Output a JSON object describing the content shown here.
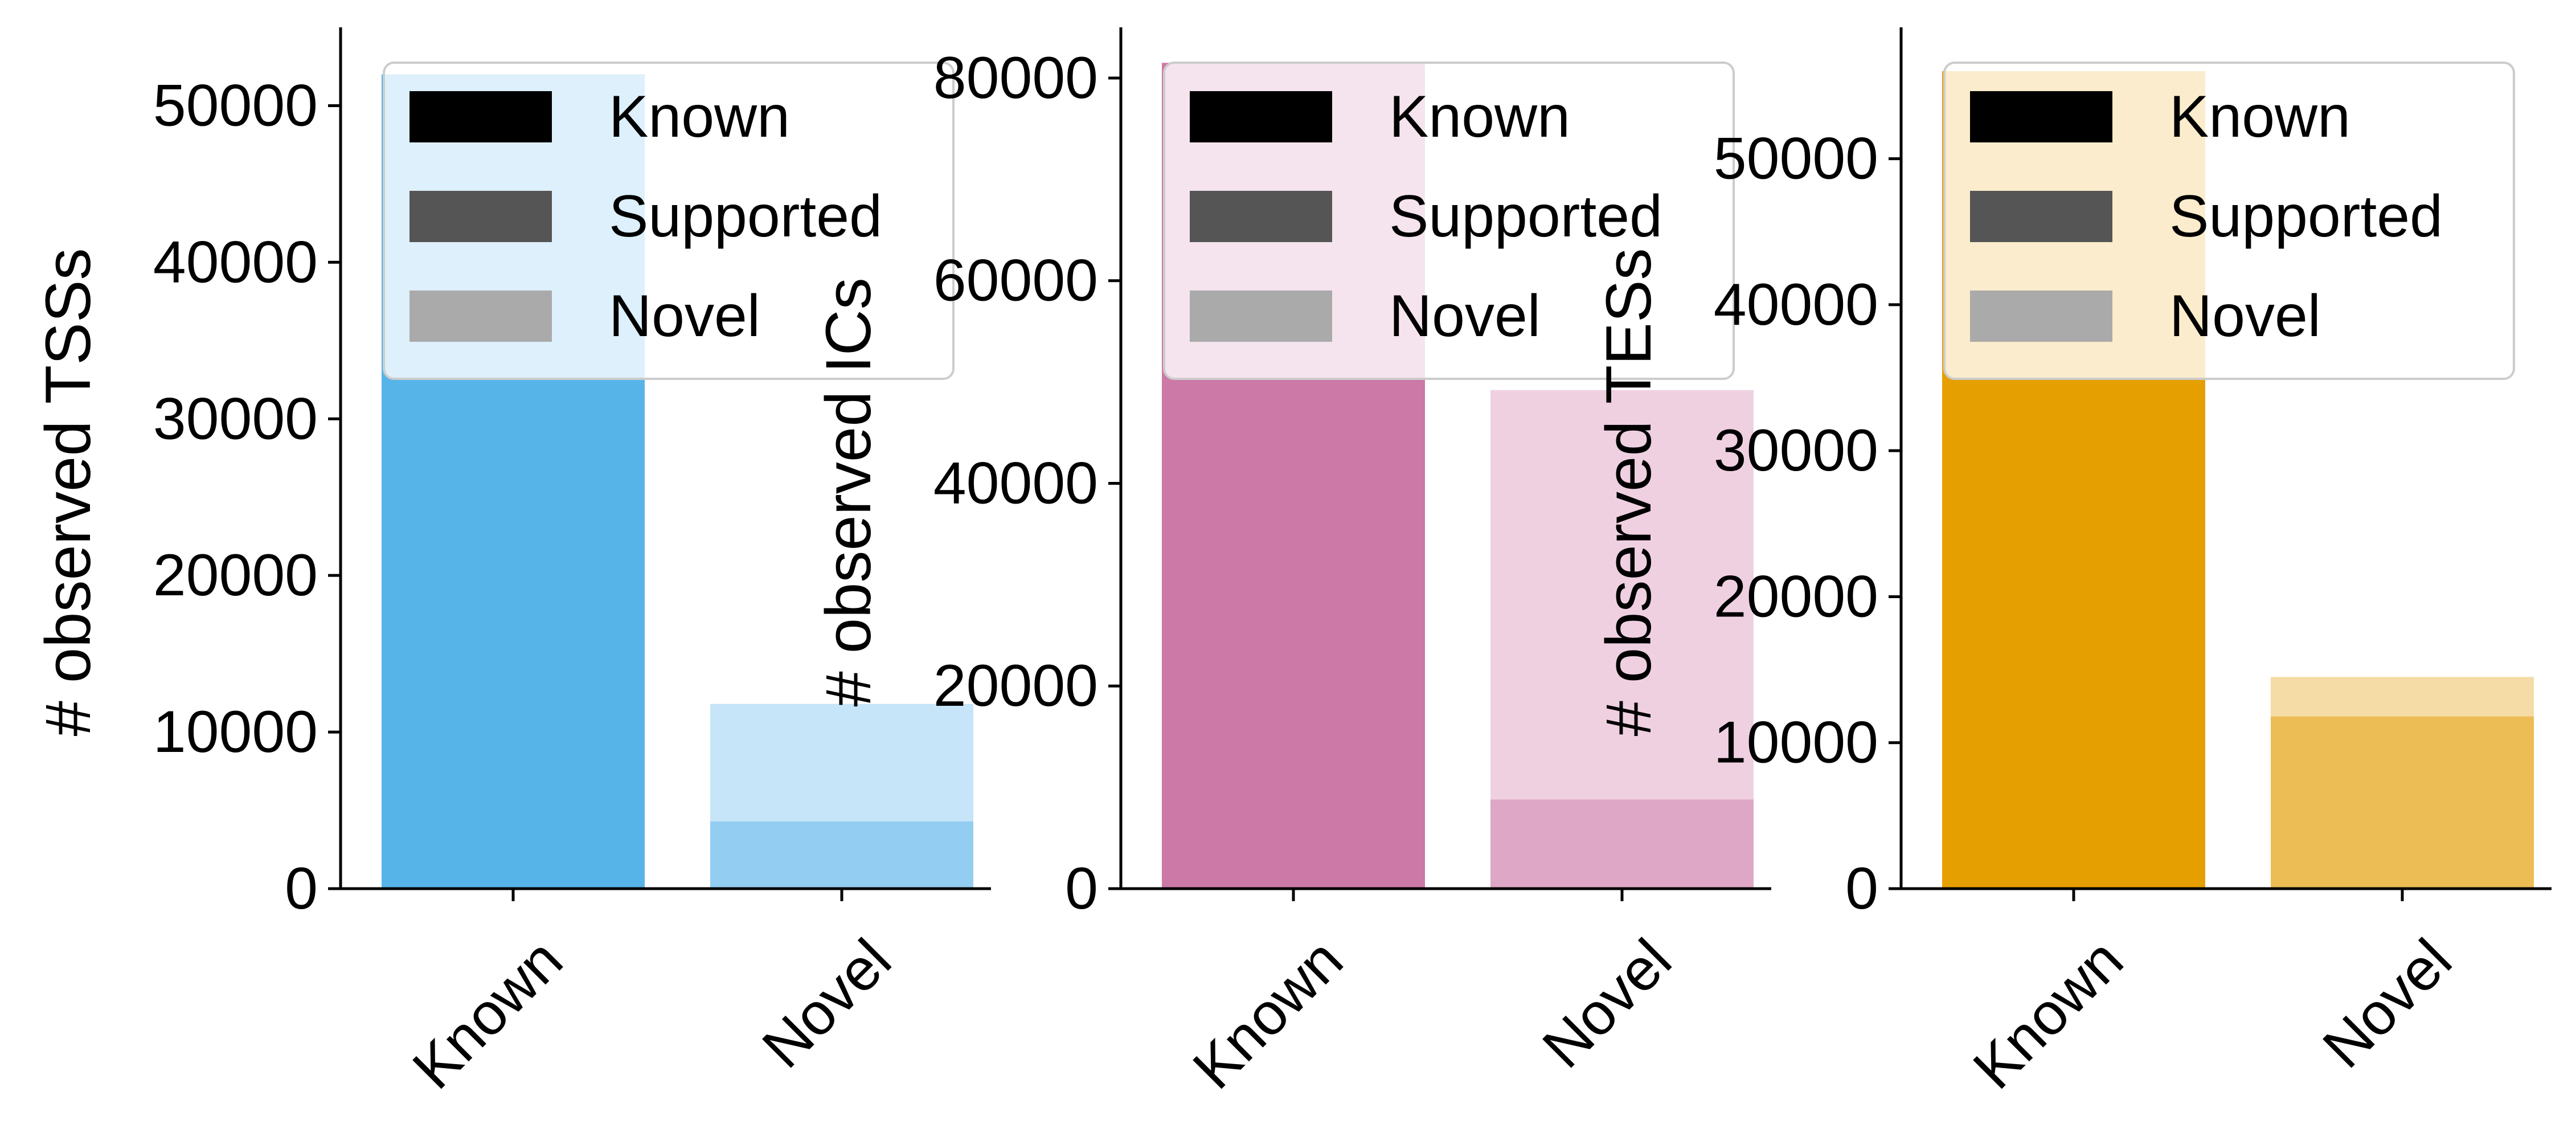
{
  "chart_data": [
    {
      "type": "bar",
      "stacked": true,
      "categories": [
        "Known",
        "Novel"
      ],
      "ylabel": "# observed TSSs",
      "ylim": [
        0,
        55000
      ],
      "yticks": [
        0,
        10000,
        20000,
        30000,
        40000,
        50000
      ],
      "series": [
        {
          "name": "Known",
          "values": [
            52000,
            0
          ],
          "colors": [
            "#56b4e9",
            "#56b4e9"
          ]
        },
        {
          "name": "Supported",
          "values": [
            0,
            4300
          ],
          "colors": [
            "#56b4e9",
            "#93cdf1"
          ]
        },
        {
          "name": "Novel",
          "values": [
            0,
            7500
          ],
          "colors": [
            "#56b4e9",
            "#c6e5f8"
          ]
        }
      ],
      "legend": {
        "entries": [
          "Known",
          "Supported",
          "Novel"
        ],
        "placement": "top-right"
      }
    },
    {
      "type": "bar",
      "stacked": true,
      "categories": [
        "Known",
        "Novel"
      ],
      "ylabel": "# observed ICs",
      "ylim": [
        0,
        85000
      ],
      "yticks": [
        0,
        20000,
        40000,
        60000,
        80000
      ],
      "series": [
        {
          "name": "Known",
          "values": [
            81500,
            0
          ],
          "colors": [
            "#cc79a7",
            "#cc79a7"
          ]
        },
        {
          "name": "Supported",
          "values": [
            0,
            8800
          ],
          "colors": [
            "#cc79a7",
            "#dea7c5"
          ]
        },
        {
          "name": "Novel",
          "values": [
            0,
            40400
          ],
          "colors": [
            "#cc79a7",
            "#efd0e1"
          ]
        }
      ],
      "legend": {
        "entries": [
          "Known",
          "Supported",
          "Novel"
        ],
        "placement": "top-right"
      }
    },
    {
      "type": "bar",
      "stacked": true,
      "categories": [
        "Known",
        "Novel"
      ],
      "ylabel": "# observed TESs",
      "ylim": [
        0,
        59000
      ],
      "yticks": [
        0,
        10000,
        20000,
        30000,
        40000,
        50000
      ],
      "series": [
        {
          "name": "Known",
          "values": [
            56000,
            0
          ],
          "colors": [
            "#e69f00",
            "#e69f00"
          ]
        },
        {
          "name": "Supported",
          "values": [
            0,
            11800
          ],
          "colors": [
            "#e69f00",
            "#ecbd54"
          ]
        },
        {
          "name": "Novel",
          "values": [
            0,
            2700
          ],
          "colors": [
            "#e69f00",
            "#f5dba5"
          ]
        }
      ],
      "legend": {
        "entries": [
          "Known",
          "Supported",
          "Novel"
        ],
        "placement": "top-right"
      }
    }
  ],
  "legend_swatch_colors": [
    "#000000",
    "#555555",
    "#aaaaaa"
  ]
}
